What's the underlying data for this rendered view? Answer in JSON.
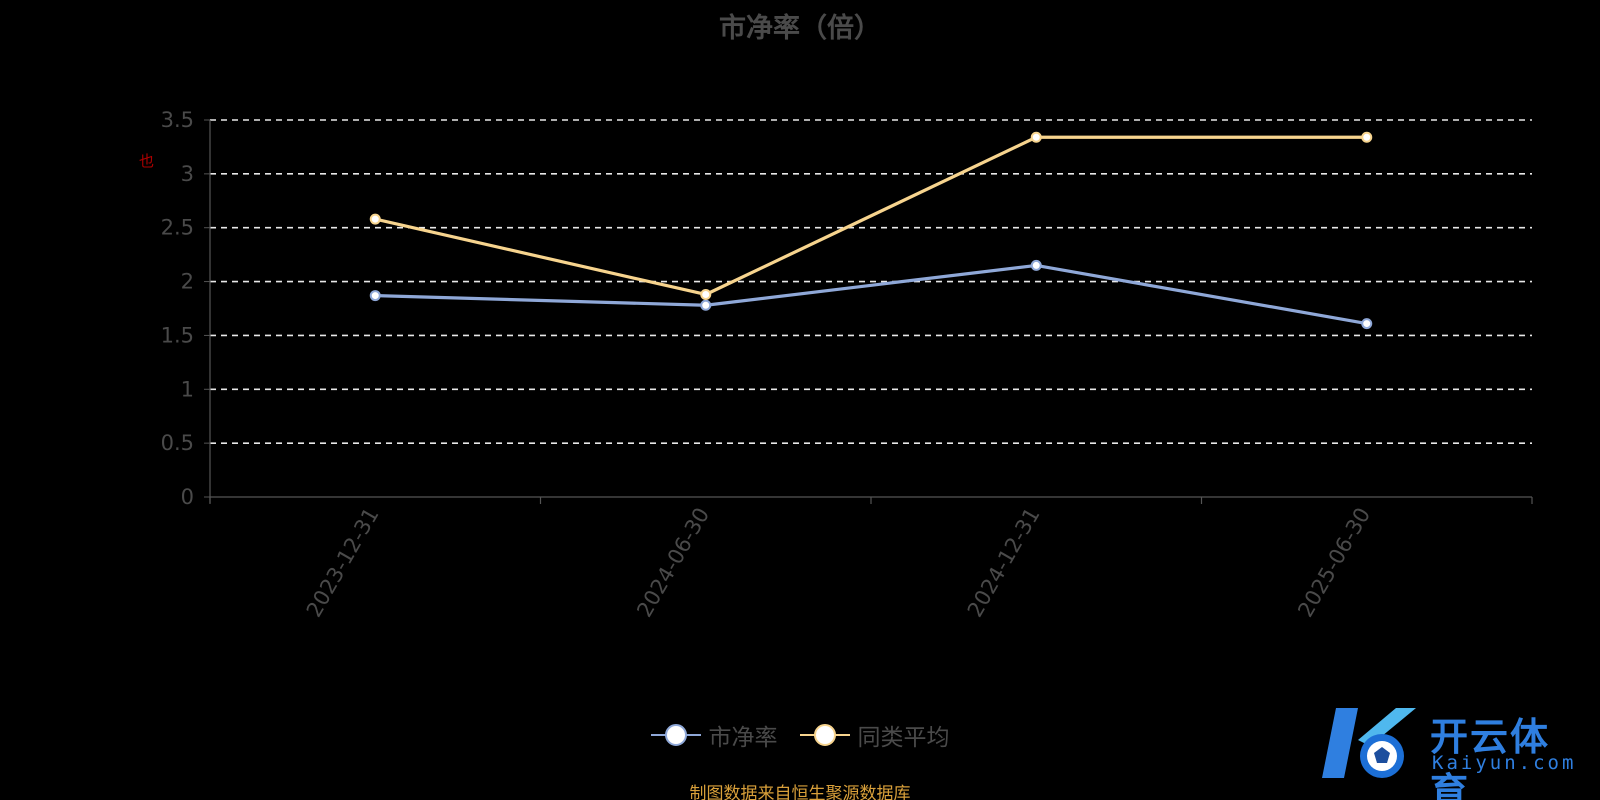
{
  "chart_data": {
    "type": "line",
    "title": "市净率（倍）",
    "categories": [
      "2023-12-31",
      "2024-06-30",
      "2024-12-31",
      "2025-06-30"
    ],
    "series": [
      {
        "name": "市净率",
        "values": [
          1.87,
          1.78,
          2.15,
          1.61
        ],
        "color": "#8fa8d8"
      },
      {
        "name": "同类平均",
        "values": [
          2.58,
          1.88,
          3.34,
          3.34
        ],
        "color": "#f7d48e"
      }
    ],
    "ylim": [
      0,
      3.5
    ],
    "yticks": [
      "0",
      "0.5",
      "1",
      "1.5",
      "2",
      "2.5",
      "3",
      "3.5"
    ],
    "grid": true,
    "legend_position": "bottom-center"
  },
  "side_mark": "也",
  "source_note": "制图数据来自恒生聚源数据库",
  "logo": {
    "name_cn": "开云体育",
    "name_en": "Kaiyun.com",
    "color": "#2f7fe0"
  }
}
